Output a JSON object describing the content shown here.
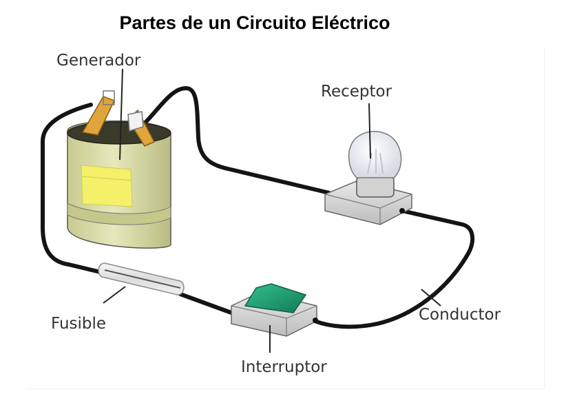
{
  "title": "Partes de un Circuito Eléctrico",
  "labels": {
    "generador": "Generador",
    "receptor": "Receptor",
    "conductor": "Conductor",
    "fusible": "Fusible",
    "interruptor": "Interruptor"
  },
  "colors": {
    "wire": "#141414",
    "battery_body": "#d9dca6",
    "battery_label": "#f4f06a",
    "switch_rocker": "#1e9e73",
    "bulb_base": "#dedede",
    "bulb_glass": "#eef1f6"
  }
}
